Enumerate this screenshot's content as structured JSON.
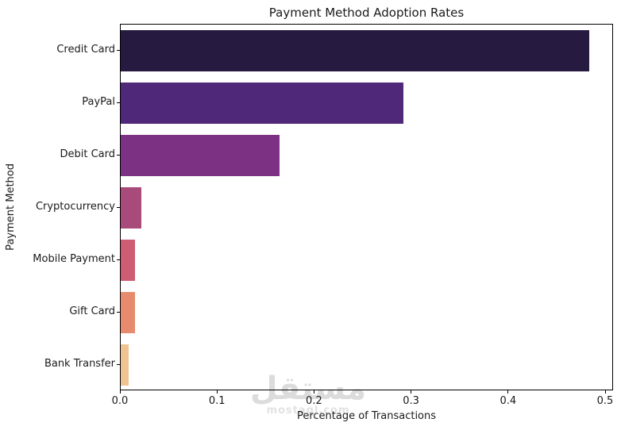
{
  "chart_data": {
    "type": "bar",
    "orientation": "horizontal",
    "title": "Payment Method Adoption Rates",
    "xlabel": "Percentage of Transactions",
    "ylabel": "Payment Method",
    "categories": [
      "Credit Card",
      "PayPal",
      "Debit Card",
      "Cryptocurrency",
      "Mobile Payment",
      "Gift Card",
      "Bank Transfer"
    ],
    "values": [
      0.483,
      0.291,
      0.164,
      0.021,
      0.015,
      0.015,
      0.008
    ],
    "bar_colors": [
      "#261a40",
      "#4f2879",
      "#7c3183",
      "#a84a7a",
      "#cd5d72",
      "#e68b6d",
      "#efc392"
    ],
    "xlim": [
      0.0,
      0.5
    ],
    "xtick_labels": [
      "0.0",
      "0.1",
      "0.2",
      "0.3",
      "0.4",
      "0.5"
    ],
    "xtick_values": [
      0.0,
      0.1,
      0.2,
      0.3,
      0.4,
      0.5
    ],
    "grid": false,
    "legend_position": "none"
  },
  "watermark": {
    "logo_text": "مستقل",
    "domain_text": "mostaql.com"
  },
  "colors": {
    "background": "#ffffff",
    "text": "#1a1a1a",
    "spine": "#000000",
    "watermark": "#dcdcdc"
  }
}
